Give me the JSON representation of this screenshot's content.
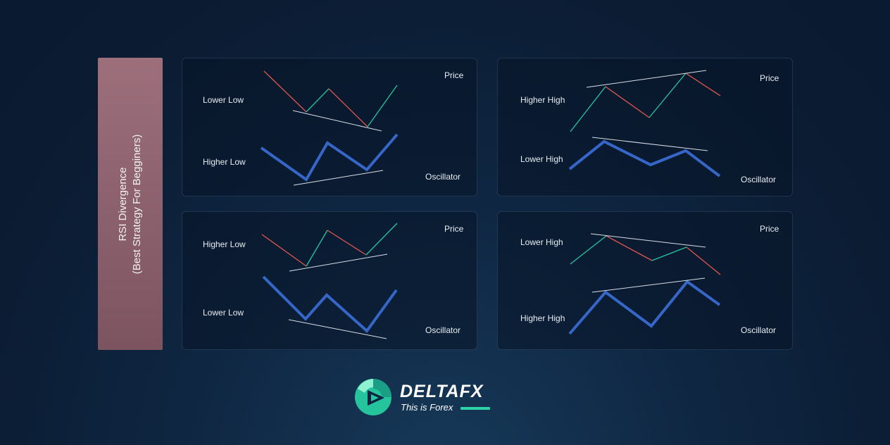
{
  "title": {
    "line1": "RSI Divergence",
    "line2": "(Best Strategy For Begginers)"
  },
  "panels": [
    {
      "price_label": "Price",
      "oscillator_label": "Oscillator",
      "price_annotation": "Lower Low",
      "oscillator_annotation": "Higher Low"
    },
    {
      "price_label": "Price",
      "oscillator_label": "Oscillator",
      "price_annotation": "Higher High",
      "oscillator_annotation": "Lower High"
    },
    {
      "price_label": "Price",
      "oscillator_label": "Oscillator",
      "price_annotation": "Higher Low",
      "oscillator_annotation": "Lower Low"
    },
    {
      "price_label": "Price",
      "oscillator_label": "Oscillator",
      "price_annotation": "Lower High",
      "oscillator_annotation": "Higher High"
    }
  ],
  "logo": {
    "name": "DELTAFX",
    "tagline": "This is Forex"
  },
  "colors": {
    "up_segment": "#25c5a0",
    "down_segment": "#e0574f",
    "oscillator": "#3566c8",
    "trendline": "#d8dde6",
    "brand_accent": "#2bd3a7"
  }
}
